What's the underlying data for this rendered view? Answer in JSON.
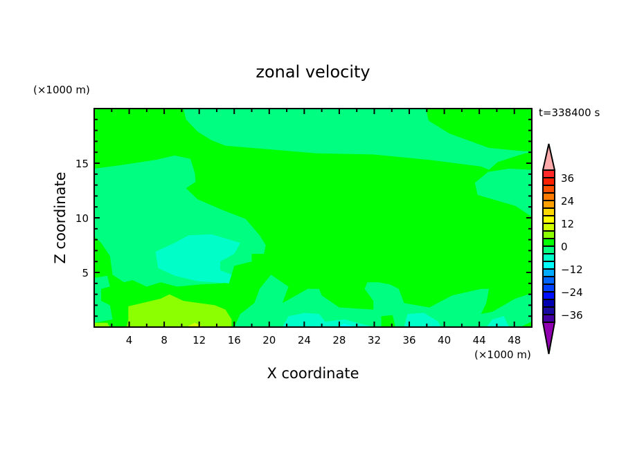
{
  "chart_data": {
    "type": "heatmap",
    "subtype": "filled-contour",
    "title": "zonal velocity",
    "xlabel": "X coordinate",
    "ylabel": "Z coordinate",
    "x_unit": "(×1000 m)",
    "y_unit": "(×1000 m)",
    "time_label": "t=338400 s",
    "xlim": [
      0,
      50
    ],
    "ylim": [
      0,
      20
    ],
    "x_ticks": [
      4,
      8,
      12,
      16,
      20,
      24,
      28,
      32,
      36,
      40,
      44,
      48
    ],
    "y_ticks": [
      5,
      10,
      15
    ],
    "grid": false,
    "colorbar": {
      "levels": [
        -40,
        -36,
        -32,
        -28,
        -24,
        -20,
        -16,
        -12,
        -8,
        -4,
        0,
        4,
        8,
        12,
        16,
        20,
        24,
        28,
        32,
        36,
        40
      ],
      "colors": [
        "#4400a0",
        "#1a0aa0",
        "#0000b0",
        "#0010ff",
        "#0040ff",
        "#0064ff",
        "#00aaff",
        "#00ffff",
        "#00ffc8",
        "#00ff80",
        "#00ff00",
        "#8cff00",
        "#d0ff00",
        "#ffff00",
        "#ffd700",
        "#ffa000",
        "#ff7800",
        "#ff5000",
        "#ff2000",
        "#ff2828"
      ],
      "over_color": "#ffaaaa",
      "under_color": "#9000b0",
      "tick_labels": [
        "36",
        "24",
        "12",
        "0",
        "−12",
        "−24",
        "−36"
      ],
      "tick_values": [
        36,
        24,
        12,
        0,
        -12,
        -24,
        -36
      ]
    },
    "background_level_range": [
      0,
      4
    ],
    "regions": [
      {
        "range": [
          -4,
          0
        ],
        "points": [
          [
            10.2,
            20
          ],
          [
            10.5,
            19.0
          ],
          [
            11.8,
            17.9
          ],
          [
            13.4,
            17.1
          ],
          [
            15.0,
            16.6
          ],
          [
            19.6,
            16.3
          ],
          [
            25.4,
            15.9
          ],
          [
            31.9,
            15.8
          ],
          [
            38.3,
            15.3
          ],
          [
            44.2,
            14.7
          ],
          [
            45.1,
            14.4
          ],
          [
            46.1,
            15.1
          ],
          [
            49.2,
            15.9
          ],
          [
            50,
            16.0
          ],
          [
            50,
            16.1
          ],
          [
            49.0,
            16.1
          ],
          [
            45.1,
            16.4
          ],
          [
            40.6,
            17.7
          ],
          [
            38.2,
            18.9
          ],
          [
            37.9,
            20
          ]
        ]
      },
      {
        "range": [
          -4,
          0
        ],
        "points": [
          [
            45.0,
            14.2
          ],
          [
            43.5,
            13.2
          ],
          [
            43.8,
            12.1
          ],
          [
            45.5,
            11.7
          ],
          [
            48.1,
            11.1
          ],
          [
            50,
            10.1
          ],
          [
            50,
            14.4
          ],
          [
            47.4,
            14.5
          ]
        ]
      },
      {
        "range": [
          -4,
          0
        ],
        "points": [
          [
            0,
            14.5
          ],
          [
            2.8,
            14.8
          ],
          [
            7.0,
            15.3
          ],
          [
            9.2,
            15.7
          ],
          [
            11.0,
            15.4
          ],
          [
            11.5,
            14.1
          ],
          [
            11.6,
            13.3
          ],
          [
            10.5,
            12.7
          ],
          [
            11.8,
            11.7
          ],
          [
            14.7,
            10.7
          ],
          [
            17.3,
            9.9
          ],
          [
            18.9,
            8.4
          ],
          [
            19.6,
            7.5
          ],
          [
            19.4,
            6.7
          ],
          [
            18.0,
            6.7
          ],
          [
            18.0,
            6.0
          ],
          [
            16.0,
            5.6
          ],
          [
            15.7,
            4.8
          ],
          [
            14.7,
            4.0
          ],
          [
            12.1,
            3.9
          ],
          [
            9.5,
            3.7
          ],
          [
            7.6,
            4.1
          ],
          [
            6.0,
            3.7
          ],
          [
            4.4,
            4.3
          ],
          [
            3.4,
            4.1
          ],
          [
            2.1,
            4.8
          ],
          [
            1.8,
            6.5
          ],
          [
            0.8,
            7.7
          ],
          [
            0,
            8.3
          ]
        ]
      },
      {
        "range": [
          -4,
          0
        ],
        "points": [
          [
            0,
            4.5
          ],
          [
            1.5,
            4.7
          ],
          [
            1.8,
            3.7
          ],
          [
            0.8,
            3.5
          ],
          [
            0.8,
            2.4
          ],
          [
            1.8,
            2.0
          ],
          [
            2.1,
            0.7
          ],
          [
            0,
            0.4
          ]
        ]
      },
      {
        "range": [
          -4,
          0
        ],
        "points": [
          [
            16.0,
            0
          ],
          [
            16.7,
            1.2
          ],
          [
            18.3,
            2.2
          ],
          [
            18.9,
            3.5
          ],
          [
            20.2,
            4.8
          ],
          [
            22.2,
            3.7
          ],
          [
            21.5,
            2.2
          ],
          [
            24.4,
            3.5
          ],
          [
            25.7,
            3.5
          ],
          [
            26.0,
            2.9
          ],
          [
            28.0,
            1.8
          ],
          [
            31.9,
            1.6
          ],
          [
            31.9,
            2.4
          ],
          [
            30.9,
            3.5
          ],
          [
            31.2,
            4.1
          ],
          [
            32.5,
            4.1
          ],
          [
            33.8,
            3.9
          ],
          [
            34.8,
            3.5
          ],
          [
            35.4,
            2.2
          ],
          [
            38.3,
            1.8
          ],
          [
            40.9,
            2.9
          ],
          [
            44.2,
            3.5
          ],
          [
            45.1,
            3.5
          ],
          [
            44.8,
            2.2
          ],
          [
            44.2,
            1.2
          ],
          [
            45.5,
            1.4
          ],
          [
            48.1,
            2.6
          ],
          [
            50,
            3.1
          ],
          [
            50,
            0.5
          ],
          [
            48.7,
            0
          ]
        ]
      },
      {
        "range": [
          0,
          4
        ],
        "points": [
          [
            32.8,
            0
          ],
          [
            32.8,
            1.0
          ],
          [
            34.1,
            1.1
          ],
          [
            34.4,
            0
          ]
        ]
      },
      {
        "range": [
          -8,
          -4
        ],
        "points": [
          [
            7.0,
            6.9
          ],
          [
            9.2,
            7.7
          ],
          [
            10.8,
            8.4
          ],
          [
            13.4,
            8.5
          ],
          [
            16.7,
            7.7
          ],
          [
            16.0,
            6.7
          ],
          [
            14.4,
            6.0
          ],
          [
            14.4,
            5.2
          ],
          [
            15.7,
            4.8
          ],
          [
            15.4,
            4.0
          ],
          [
            11.8,
            4.2
          ],
          [
            9.2,
            4.7
          ],
          [
            7.3,
            5.4
          ]
        ]
      },
      {
        "range": [
          -8,
          -4
        ],
        "points": [
          [
            21.5,
            0
          ],
          [
            22.2,
            1.0
          ],
          [
            24.1,
            1.3
          ],
          [
            25.7,
            1.2
          ],
          [
            26.4,
            0.5
          ],
          [
            28.6,
            0.7
          ],
          [
            31.9,
            0
          ]
        ]
      },
      {
        "range": [
          -8,
          -4
        ],
        "points": [
          [
            35.4,
            0
          ],
          [
            35.8,
            1.2
          ],
          [
            37.7,
            1.3
          ],
          [
            39.3,
            0.5
          ],
          [
            39.6,
            0
          ]
        ]
      },
      {
        "range": [
          -8,
          -4
        ],
        "points": [
          [
            44.8,
            0
          ],
          [
            45.5,
            0.7
          ],
          [
            46.8,
            1.0
          ],
          [
            47.4,
            0
          ]
        ]
      },
      {
        "range": [
          -12,
          -8
        ],
        "points": [
          [
            27.7,
            0
          ],
          [
            28.6,
            0.3
          ],
          [
            29.9,
            0
          ]
        ]
      },
      {
        "range": [
          4,
          8
        ],
        "points": [
          [
            3.9,
            1.9
          ],
          [
            7.6,
            2.6
          ],
          [
            8.6,
            3.0
          ],
          [
            10.2,
            2.4
          ],
          [
            13.8,
            2.0
          ],
          [
            15.0,
            1.6
          ],
          [
            15.7,
            0.7
          ],
          [
            15.7,
            0
          ],
          [
            3.7,
            0
          ],
          [
            3.9,
            0.7
          ]
        ]
      },
      {
        "range": [
          4,
          8
        ],
        "points": [
          [
            0,
            0.4
          ],
          [
            1.5,
            0.4
          ],
          [
            1.8,
            0
          ],
          [
            0,
            0
          ]
        ]
      },
      {
        "range": [
          8,
          12
        ],
        "points": [
          [
            10.5,
            0
          ],
          [
            11.5,
            0.4
          ],
          [
            12.5,
            0
          ]
        ]
      }
    ]
  }
}
